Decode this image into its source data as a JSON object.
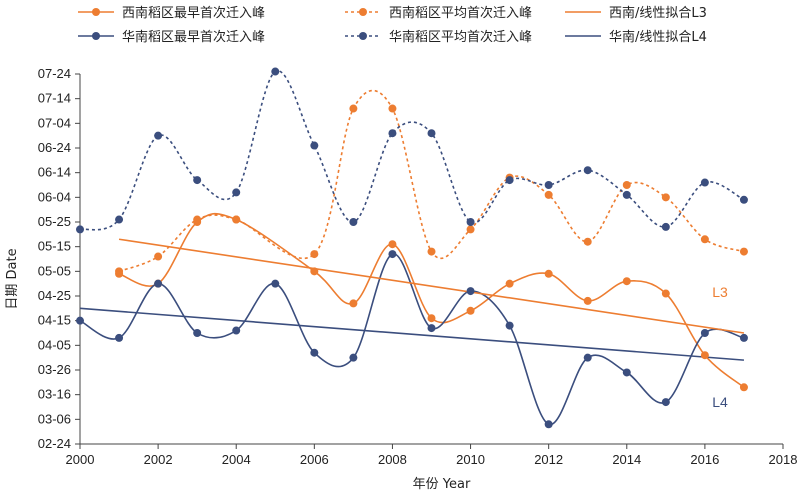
{
  "chart_data": {
    "type": "line",
    "xlabel": "年份 Year",
    "ylabel": "日期 Date",
    "xlim": [
      2000,
      2018
    ],
    "x_ticks": [
      "2000",
      "2002",
      "2004",
      "2006",
      "2008",
      "2010",
      "2012",
      "2014",
      "2016",
      "2018"
    ],
    "y_tick_labels": [
      "07-24",
      "07-14",
      "07-04",
      "06-24",
      "06-14",
      "06-04",
      "05-25",
      "05-15",
      "05-05",
      "04-25",
      "04-15",
      "04-05",
      "03-26",
      "03-16",
      "03-06",
      "02-24"
    ],
    "ylim": [
      "02-24",
      "07-24"
    ],
    "grid": false,
    "legend_position": "top",
    "colors": {
      "orange": "#ED7D31",
      "blue": "#3B4E7E"
    },
    "series": [
      {
        "name": "西南稻区最早首次迁入峰",
        "style": "solid",
        "color": "#ED7D31",
        "x": [
          2001,
          2002,
          2003,
          2004,
          2006,
          2007,
          2008,
          2009,
          2010,
          2011,
          2012,
          2013,
          2014,
          2015,
          2016,
          2017
        ],
        "y": [
          "05-04",
          "04-30",
          "05-25",
          "05-26",
          "05-05",
          "04-22",
          "05-16",
          "04-16",
          "04-19",
          "04-30",
          "05-04",
          "04-23",
          "05-01",
          "04-26",
          "04-01",
          "03-19"
        ]
      },
      {
        "name": "华南稻区最早首次迁入峰",
        "style": "solid",
        "color": "#3B4E7E",
        "x": [
          2000,
          2001,
          2002,
          2003,
          2004,
          2005,
          2006,
          2007,
          2008,
          2009,
          2010,
          2011,
          2012,
          2013,
          2014,
          2015,
          2016,
          2017
        ],
        "y": [
          "04-15",
          "04-08",
          "04-30",
          "04-10",
          "04-11",
          "04-30",
          "04-02",
          "03-31",
          "05-12",
          "04-12",
          "04-27",
          "04-13",
          "03-04",
          "03-31",
          "03-25",
          "03-13",
          "04-10",
          "04-08"
        ]
      },
      {
        "name": "西南稻区平均首次迁入峰",
        "style": "dashed",
        "color": "#ED7D31",
        "x": [
          2001,
          2002,
          2003,
          2004,
          2006,
          2007,
          2008,
          2009,
          2010,
          2011,
          2012,
          2013,
          2014,
          2015,
          2016,
          2017
        ],
        "y": [
          "05-05",
          "05-11",
          "05-26",
          "05-26",
          "05-12",
          "07-10",
          "07-10",
          "05-13",
          "05-22",
          "06-12",
          "06-05",
          "05-17",
          "06-09",
          "06-04",
          "05-18",
          "05-13"
        ]
      },
      {
        "name": "华南稻区平均首次迁入峰",
        "style": "dashed",
        "color": "#3B4E7E",
        "x": [
          2000,
          2001,
          2002,
          2003,
          2004,
          2005,
          2006,
          2007,
          2008,
          2009,
          2010,
          2011,
          2012,
          2013,
          2014,
          2015,
          2016,
          2017
        ],
        "y": [
          "05-22",
          "05-26",
          "06-29",
          "06-11",
          "06-06",
          "07-25",
          "06-25",
          "05-25",
          "06-30",
          "06-30",
          "05-25",
          "06-11",
          "06-09",
          "06-15",
          "06-05",
          "05-23",
          "06-10",
          "06-03"
        ]
      },
      {
        "name": "西南/线性拟合L3",
        "style": "solid-fit",
        "color": "#ED7D31",
        "x": [
          2001,
          2017
        ],
        "y": [
          "05-18",
          "04-10"
        ]
      },
      {
        "name": "华南/线性拟合L4",
        "style": "solid-fit",
        "color": "#3B4E7E",
        "x": [
          2000,
          2017
        ],
        "y": [
          "04-20",
          "03-30"
        ]
      }
    ],
    "annotations": [
      {
        "text": "L3",
        "series": "西南/线性拟合L3",
        "color": "#ED7D31"
      },
      {
        "text": "L4",
        "series": "华南/线性拟合L4",
        "color": "#3B4E7E"
      }
    ]
  }
}
